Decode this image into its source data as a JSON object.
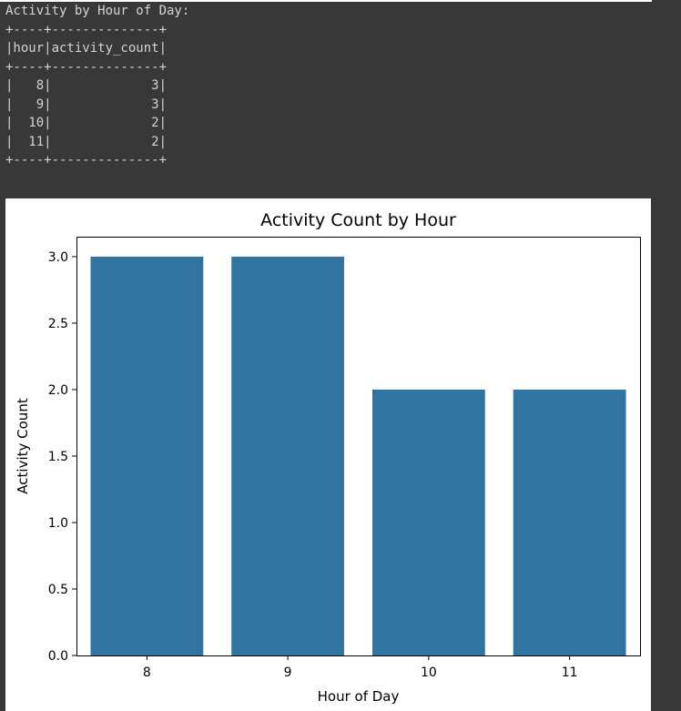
{
  "console": {
    "heading": "Activity by Hour of Day:",
    "table_lines": [
      "+----+--------------+",
      "|hour|activity_count|",
      "+----+--------------+",
      "|   8|             3|",
      "|   9|             3|",
      "|  10|             2|",
      "|  11|             2|",
      "+----+--------------+"
    ]
  },
  "chart_data": {
    "type": "bar",
    "title": "Activity Count by Hour",
    "xlabel": "Hour of Day",
    "ylabel": "Activity Count",
    "categories": [
      "8",
      "9",
      "10",
      "11"
    ],
    "values": [
      3,
      3,
      2,
      2
    ],
    "ylim": [
      0,
      3.15
    ],
    "yticks": [
      0.0,
      0.5,
      1.0,
      1.5,
      2.0,
      2.5,
      3.0
    ],
    "ytick_labels": [
      "0.0",
      "0.5",
      "1.0",
      "1.5",
      "2.0",
      "2.5",
      "3.0"
    ],
    "grid": false,
    "bar_color": "#3274a1"
  },
  "colors": {
    "console_bg": "#383838",
    "console_text": "#d4d4d4"
  }
}
